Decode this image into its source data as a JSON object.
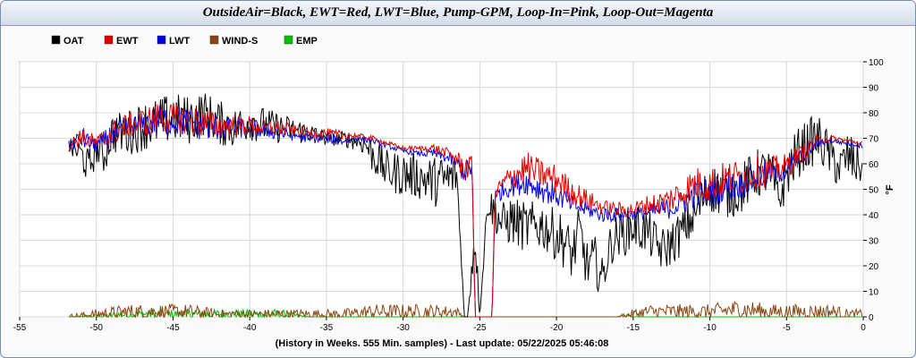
{
  "window": {
    "title": "OutsideAir=Black, EWT=Red, LWT=Blue, Pump-GPM, Loop-In=Pink, Loop-Out=Magenta"
  },
  "chart_data": {
    "type": "line",
    "title": "OutsideAir=Black, EWT=Red, LWT=Blue, Pump-GPM, Loop-In=Pink, Loop-Out=Magenta",
    "xlabel": "(History in Weeks. 555 Min. samples) - Last update: 05/22/2025 05:46:08",
    "ylabel": "°F",
    "xlim": [
      -55,
      0
    ],
    "ylim": [
      0,
      100
    ],
    "xticks": [
      -55,
      -50,
      -45,
      -40,
      -35,
      -30,
      -25,
      -20,
      -15,
      -10,
      -5,
      0
    ],
    "xtick_labels": [
      "-55",
      "-50",
      "-45",
      "-40",
      "-35",
      "-30",
      "-25",
      "-20",
      "-15",
      "-10",
      "-5",
      "0"
    ],
    "yticks": [
      0,
      10,
      20,
      30,
      40,
      50,
      60,
      70,
      80,
      90,
      100
    ],
    "ytick_labels": [
      "0",
      "10",
      "20",
      "30",
      "40",
      "50",
      "60",
      "70",
      "80",
      "90",
      "100"
    ],
    "grid": true,
    "legend_position": "top-left",
    "series": [
      {
        "name": "OAT",
        "color": "#000000",
        "x": [
          -51.8,
          -51,
          -50.5,
          -50,
          -49.5,
          -49,
          -48,
          -47,
          -46,
          -45,
          -44,
          -43,
          -42,
          -41,
          -40,
          -39,
          -38,
          -37,
          -36,
          -35,
          -34,
          -33,
          -32.5,
          -32,
          -31,
          -30,
          -29,
          -28,
          -27,
          -26.5,
          -26,
          -25.8,
          -25.5,
          -25.3,
          -25,
          -24.5,
          -24,
          -23.5,
          -23,
          -22,
          -21,
          -20,
          -19.5,
          -19,
          -18.5,
          -18,
          -17.5,
          -17,
          -16.5,
          -16,
          -15.5,
          -15,
          -14,
          -13.5,
          -13,
          -12,
          -11,
          -10,
          -9,
          -8,
          -7,
          -6,
          -5.5,
          -5,
          -4.5,
          -4,
          -3,
          -2,
          -1.5,
          -1,
          -0.5,
          0
        ],
        "y": [
          67,
          64,
          58,
          66,
          63,
          72,
          72,
          75,
          76,
          78,
          77,
          80,
          76,
          74,
          77,
          75,
          74,
          73,
          72,
          70,
          70,
          69,
          68,
          64,
          57,
          56,
          55,
          53,
          54,
          56,
          0,
          0,
          22,
          32,
          0,
          45,
          41,
          36,
          38,
          35,
          36,
          32,
          30,
          24,
          33,
          20,
          22,
          15,
          28,
          32,
          33,
          36,
          33,
          28,
          26,
          32,
          40,
          51,
          48,
          50,
          56,
          57,
          45,
          56,
          62,
          66,
          70,
          62,
          58,
          63,
          60,
          60
        ],
        "amp": [
          4,
          6,
          8,
          6,
          8,
          8,
          9,
          10,
          10,
          10,
          10,
          9,
          9,
          8,
          8,
          7,
          6,
          5,
          4,
          3,
          3,
          4,
          5,
          8,
          8,
          9,
          9,
          10,
          10,
          8,
          0,
          0,
          10,
          10,
          0,
          6,
          8,
          9,
          10,
          10,
          10,
          10,
          11,
          10,
          11,
          10,
          10,
          8,
          8,
          9,
          9,
          10,
          9,
          9,
          9,
          9,
          9,
          10,
          10,
          10,
          10,
          9,
          8,
          10,
          10,
          10,
          10,
          9,
          9,
          10,
          9,
          9
        ]
      },
      {
        "name": "EWT",
        "color": "#e00000",
        "x": [
          -51.8,
          -51,
          -50,
          -49,
          -48,
          -47,
          -46,
          -45,
          -44,
          -43,
          -42,
          -41,
          -40,
          -39,
          -38,
          -37,
          -36,
          -35,
          -34,
          -33,
          -32,
          -31,
          -30,
          -29,
          -28,
          -27,
          -26.5,
          -26,
          -25.5,
          -25.3,
          -25,
          -24.2,
          -24,
          -23.5,
          -23,
          -22,
          -21,
          -20,
          -19,
          -18,
          -17,
          -16,
          -15,
          -14,
          -13,
          -12,
          -11,
          -10,
          -9,
          -8,
          -7,
          -6,
          -5,
          -4,
          -3,
          -2,
          -1,
          0
        ],
        "y": [
          66,
          71,
          68,
          72,
          75,
          76,
          78,
          78,
          77,
          76,
          75,
          75,
          75,
          74,
          74,
          73,
          72,
          72,
          71,
          71,
          70,
          68,
          66,
          66,
          66,
          64,
          62,
          58,
          60,
          0,
          0,
          0,
          48,
          52,
          55,
          58,
          56,
          54,
          49,
          46,
          43,
          42,
          42,
          44,
          45,
          48,
          52,
          52,
          54,
          55,
          57,
          57,
          59,
          64,
          69,
          70,
          69,
          68
        ],
        "amp": [
          2,
          4,
          3,
          5,
          5,
          6,
          6,
          6,
          6,
          6,
          5,
          4,
          4,
          3,
          3,
          2,
          2,
          2,
          2,
          1,
          1,
          1,
          1,
          1,
          2,
          2,
          3,
          6,
          3,
          0,
          0,
          0,
          4,
          4,
          5,
          7,
          6,
          6,
          5,
          4,
          3,
          3,
          3,
          4,
          5,
          6,
          7,
          7,
          7,
          7,
          7,
          6,
          5,
          4,
          2,
          1,
          1,
          1
        ]
      },
      {
        "name": "LWT",
        "color": "#0000e0",
        "x": [
          -51.8,
          -51,
          -50,
          -49,
          -48,
          -47,
          -46,
          -45,
          -44,
          -43,
          -42,
          -41,
          -40,
          -39,
          -38,
          -37,
          -36,
          -35,
          -34,
          -33,
          -32,
          -31,
          -30,
          -29,
          -28,
          -27,
          -26.5,
          -26,
          -25.5,
          -25.3,
          -25,
          -24.2,
          -24,
          -23.5,
          -23,
          -22,
          -21,
          -20,
          -19,
          -18,
          -17,
          -16,
          -15,
          -14,
          -13,
          -12,
          -11,
          -10,
          -9,
          -8,
          -7,
          -6,
          -5,
          -4,
          -3,
          -2,
          -1,
          0
        ],
        "y": [
          67,
          70,
          67,
          71,
          74,
          75,
          77,
          77,
          76,
          75,
          74,
          74,
          74,
          73,
          72,
          71,
          70,
          70,
          69,
          70,
          69,
          67,
          65,
          64,
          64,
          62,
          60,
          57,
          58,
          0,
          0,
          0,
          47,
          50,
          51,
          53,
          50,
          48,
          44,
          42,
          40,
          40,
          40,
          41,
          42,
          44,
          48,
          49,
          51,
          52,
          55,
          56,
          58,
          63,
          68,
          69,
          68,
          67
        ],
        "amp": [
          2,
          4,
          3,
          5,
          5,
          5,
          6,
          6,
          6,
          6,
          5,
          4,
          4,
          3,
          3,
          2,
          2,
          2,
          2,
          1,
          1,
          1,
          1,
          1,
          2,
          2,
          3,
          5,
          3,
          0,
          0,
          0,
          3,
          4,
          4,
          5,
          5,
          5,
          4,
          3,
          3,
          3,
          2,
          3,
          4,
          5,
          6,
          6,
          6,
          6,
          6,
          5,
          5,
          3,
          2,
          1,
          1,
          1
        ]
      },
      {
        "name": "WIND-S",
        "color": "#8b4513",
        "x": [
          -51.8,
          -50,
          -48,
          -46,
          -44,
          -42,
          -40,
          -38,
          -36,
          -34,
          -32,
          -30,
          -28,
          -26.5,
          -26,
          -25,
          -24,
          -22,
          -20,
          -18,
          -16,
          -15,
          -14,
          -12,
          -10,
          -8,
          -6,
          -4,
          -2,
          -1,
          0
        ],
        "y": [
          0,
          1,
          2,
          2,
          2,
          1,
          1,
          1,
          1,
          1,
          2,
          2,
          2,
          2,
          0,
          0,
          0,
          0,
          0,
          0,
          0,
          1,
          2,
          2,
          2,
          3,
          2,
          2,
          2,
          1,
          1
        ],
        "amp": [
          1,
          2,
          3,
          3,
          3,
          2,
          2,
          2,
          2,
          2,
          3,
          3,
          3,
          2,
          0,
          0,
          0,
          0,
          0,
          0,
          0,
          2,
          3,
          3,
          3,
          4,
          3,
          3,
          3,
          2,
          2
        ]
      },
      {
        "name": "EMP",
        "color": "#00c000",
        "x": [
          -51.8,
          -50,
          -48,
          -46,
          -44,
          -42,
          -40,
          -38,
          -36,
          -34,
          -32,
          -30,
          -28,
          -26,
          -25,
          -22,
          -20,
          -18,
          -16,
          -15.5,
          -15,
          -14,
          -12,
          -10,
          -8,
          -6,
          -4,
          -2,
          0
        ],
        "y": [
          0,
          0,
          1,
          1,
          1,
          1,
          1,
          1,
          0,
          0,
          0,
          0,
          0,
          0,
          0,
          0,
          0,
          0,
          0,
          1,
          0,
          0,
          0,
          0,
          0,
          0,
          0,
          0,
          0
        ],
        "amp": [
          0,
          1,
          2,
          2,
          2,
          2,
          2,
          2,
          0,
          0,
          0,
          0,
          0,
          0,
          0,
          0,
          0,
          0,
          0,
          1,
          0,
          0,
          0,
          0,
          0,
          0,
          0,
          0,
          0
        ]
      }
    ]
  }
}
